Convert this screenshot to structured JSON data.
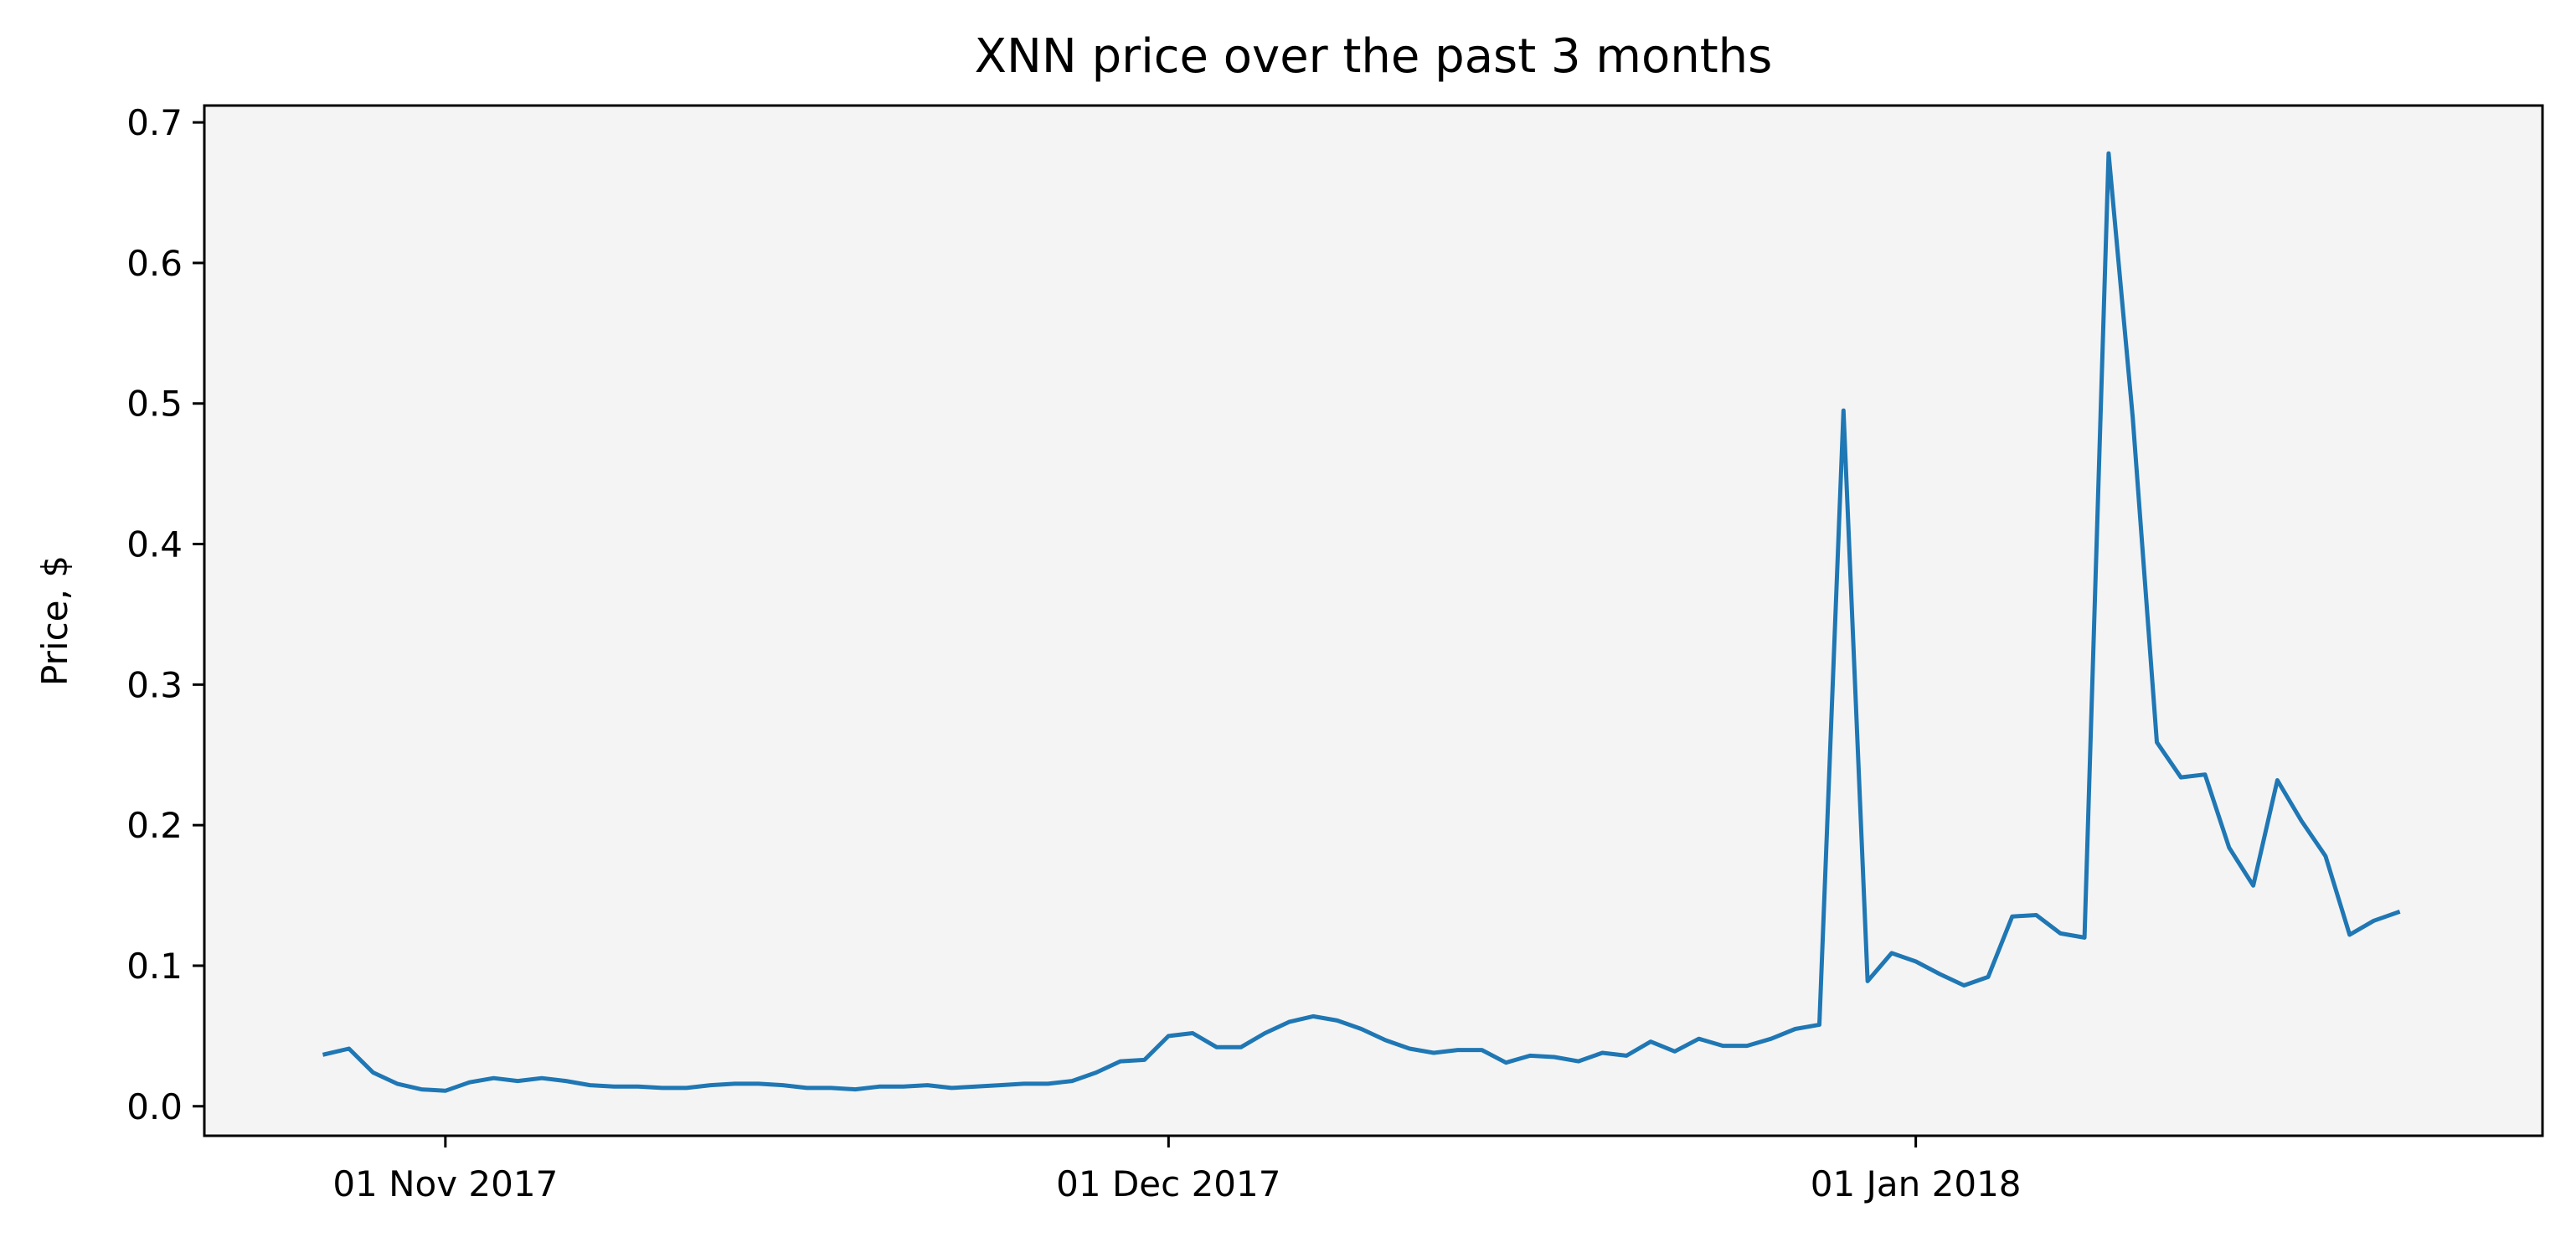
{
  "chart_data": {
    "type": "line",
    "title": "XNN price over the past 3 months",
    "xlabel": "",
    "ylabel": "Price, $",
    "x_type": "date",
    "xlim": [
      "2017-10-22",
      "2018-01-27"
    ],
    "ylim": [
      -0.021,
      0.712
    ],
    "grid": false,
    "legend": "none",
    "colors": {
      "background": "#f4f4f4",
      "line": "#1f77b4",
      "axes": "#000000"
    },
    "x_ticks": [
      {
        "date": "2017-11-01",
        "label": "01 Nov 2017"
      },
      {
        "date": "2017-12-01",
        "label": "01 Dec 2017"
      },
      {
        "date": "2018-01-01",
        "label": "01 Jan 2018"
      }
    ],
    "y_ticks": [
      {
        "value": 0.0,
        "label": "0.0"
      },
      {
        "value": 0.1,
        "label": "0.1"
      },
      {
        "value": 0.2,
        "label": "0.2"
      },
      {
        "value": 0.3,
        "label": "0.3"
      },
      {
        "value": 0.4,
        "label": "0.4"
      },
      {
        "value": 0.5,
        "label": "0.5"
      },
      {
        "value": 0.6,
        "label": "0.6"
      },
      {
        "value": 0.7,
        "label": "0.7"
      }
    ],
    "series": [
      {
        "x": [
          "2017-10-27",
          "2017-10-28",
          "2017-10-29",
          "2017-10-30",
          "2017-10-31",
          "2017-11-01",
          "2017-11-02",
          "2017-11-03",
          "2017-11-04",
          "2017-11-05",
          "2017-11-06",
          "2017-11-07",
          "2017-11-08",
          "2017-11-09",
          "2017-11-10",
          "2017-11-11",
          "2017-11-12",
          "2017-11-13",
          "2017-11-14",
          "2017-11-15",
          "2017-11-16",
          "2017-11-17",
          "2017-11-18",
          "2017-11-19",
          "2017-11-20",
          "2017-11-21",
          "2017-11-22",
          "2017-11-23",
          "2017-11-24",
          "2017-11-25",
          "2017-11-26",
          "2017-11-27",
          "2017-11-28",
          "2017-11-29",
          "2017-11-30",
          "2017-12-01",
          "2017-12-02",
          "2017-12-03",
          "2017-12-04",
          "2017-12-05",
          "2017-12-06",
          "2017-12-07",
          "2017-12-08",
          "2017-12-09",
          "2017-12-10",
          "2017-12-11",
          "2017-12-12",
          "2017-12-13",
          "2017-12-14",
          "2017-12-15",
          "2017-12-16",
          "2017-12-17",
          "2017-12-18",
          "2017-12-19",
          "2017-12-20",
          "2017-12-21",
          "2017-12-22",
          "2017-12-23",
          "2017-12-24",
          "2017-12-25",
          "2017-12-26",
          "2017-12-27",
          "2017-12-28",
          "2017-12-29",
          "2017-12-30",
          "2017-12-31",
          "2018-01-01",
          "2018-01-02",
          "2018-01-03",
          "2018-01-04",
          "2018-01-05",
          "2018-01-06",
          "2018-01-07",
          "2018-01-08",
          "2018-01-09",
          "2018-01-10",
          "2018-01-11",
          "2018-01-12",
          "2018-01-13",
          "2018-01-14",
          "2018-01-15",
          "2018-01-16",
          "2018-01-17",
          "2018-01-18",
          "2018-01-19",
          "2018-01-20",
          "2018-01-21"
        ],
        "y": [
          0.037,
          0.041,
          0.024,
          0.016,
          0.012,
          0.011,
          0.017,
          0.02,
          0.018,
          0.02,
          0.018,
          0.015,
          0.014,
          0.014,
          0.013,
          0.013,
          0.015,
          0.016,
          0.016,
          0.015,
          0.013,
          0.013,
          0.012,
          0.014,
          0.014,
          0.015,
          0.013,
          0.014,
          0.015,
          0.016,
          0.016,
          0.018,
          0.024,
          0.032,
          0.033,
          0.05,
          0.052,
          0.042,
          0.042,
          0.052,
          0.06,
          0.064,
          0.061,
          0.055,
          0.047,
          0.041,
          0.038,
          0.04,
          0.04,
          0.031,
          0.036,
          0.035,
          0.032,
          0.038,
          0.036,
          0.046,
          0.039,
          0.048,
          0.043,
          0.043,
          0.048,
          0.055,
          0.058,
          0.495,
          0.089,
          0.109,
          0.103,
          0.094,
          0.086,
          0.092,
          0.135,
          0.136,
          0.123,
          0.12,
          0.678,
          0.49,
          0.259,
          0.234,
          0.236,
          0.184,
          0.157,
          0.232,
          0.203,
          0.178,
          0.122,
          0.132,
          0.138
        ]
      }
    ]
  }
}
